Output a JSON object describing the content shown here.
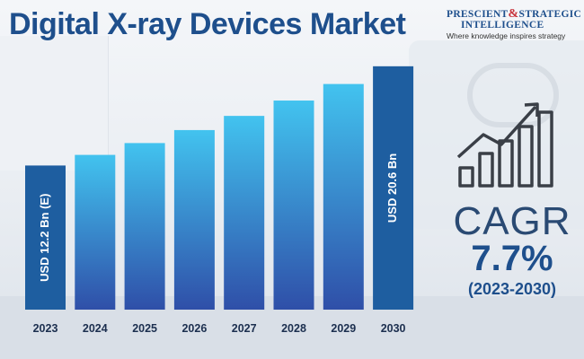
{
  "title": "Digital X-ray Devices Market",
  "brand": {
    "name_part1": "PRESCIENT",
    "ampersand": "&",
    "name_part2": "STRATEGIC",
    "name_part3": "INTELLIGENCE",
    "tagline": "Where knowledge inspires strategy"
  },
  "colors": {
    "title": "#1e4f8c",
    "bar_gradient_top": "#42c3ef",
    "bar_gradient_bottom": "#2f4fa8",
    "bar_highlight": "#1e5ea0"
  },
  "cagr": {
    "label": "CAGR",
    "value": "7.7%",
    "period": "(2023-2030)",
    "icon": "growth-bar-chart-arrow-icon"
  },
  "chart_data": {
    "type": "bar",
    "categories": [
      "2023",
      "2024",
      "2025",
      "2026",
      "2027",
      "2028",
      "2029",
      "2030"
    ],
    "values": [
      12.2,
      13.1,
      14.1,
      15.2,
      16.4,
      17.7,
      19.1,
      20.6
    ],
    "unit": "USD Bn",
    "title": "",
    "xlabel": "",
    "ylabel": "",
    "ylim": [
      0,
      21.5
    ],
    "grid": false,
    "data_labels": [
      {
        "category": "2023",
        "text": "USD 12.2 Bn (E)"
      },
      {
        "category": "2030",
        "text": "USD 20.6 Bn"
      }
    ]
  }
}
